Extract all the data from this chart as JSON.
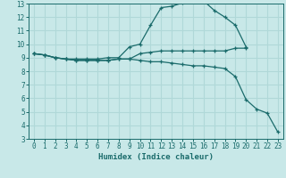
{
  "title": "",
  "xlabel": "Humidex (Indice chaleur)",
  "ylabel": "",
  "bg_color": "#c8e8e8",
  "grid_color": "#aad4d4",
  "line_color": "#1a6b6b",
  "xlim": [
    -0.5,
    23.5
  ],
  "ylim": [
    3,
    13
  ],
  "xticks": [
    0,
    1,
    2,
    3,
    4,
    5,
    6,
    7,
    8,
    9,
    10,
    11,
    12,
    13,
    14,
    15,
    16,
    17,
    18,
    19,
    20,
    21,
    22,
    23
  ],
  "yticks": [
    3,
    4,
    5,
    6,
    7,
    8,
    9,
    10,
    11,
    12,
    13
  ],
  "series": [
    {
      "x": [
        0,
        1,
        2,
        3,
        4,
        5,
        6,
        7,
        8,
        9,
        10,
        11,
        12,
        13,
        14,
        15,
        16,
        17,
        18,
        19,
        20
      ],
      "y": [
        9.3,
        9.2,
        9.0,
        8.9,
        8.8,
        8.8,
        8.8,
        8.8,
        8.9,
        8.9,
        9.3,
        9.4,
        9.5,
        9.5,
        9.5,
        9.5,
        9.5,
        9.5,
        9.5,
        9.7,
        9.7
      ]
    },
    {
      "x": [
        0,
        1,
        2,
        3,
        4,
        5,
        6,
        7,
        8,
        9,
        10,
        11,
        12,
        13,
        14,
        15,
        16,
        17,
        18,
        19,
        20
      ],
      "y": [
        9.3,
        9.2,
        9.0,
        8.9,
        8.9,
        8.9,
        8.9,
        9.0,
        9.0,
        9.8,
        10.0,
        11.4,
        12.7,
        12.8,
        13.05,
        13.2,
        13.2,
        12.5,
        12.0,
        11.4,
        9.8
      ]
    },
    {
      "x": [
        0,
        1,
        2,
        3,
        4,
        5,
        6,
        7,
        8,
        9,
        10,
        11,
        12,
        13,
        14,
        15,
        16,
        17,
        18,
        19,
        20,
        21,
        22,
        23
      ],
      "y": [
        9.3,
        9.2,
        9.0,
        8.9,
        8.8,
        8.8,
        8.8,
        8.8,
        8.9,
        8.9,
        8.8,
        8.7,
        8.7,
        8.6,
        8.5,
        8.4,
        8.4,
        8.3,
        8.2,
        7.6,
        5.9,
        5.2,
        4.9,
        3.5
      ]
    }
  ]
}
